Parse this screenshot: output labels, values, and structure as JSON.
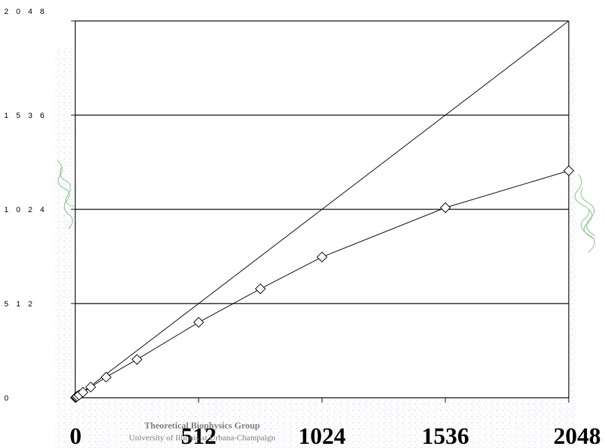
{
  "credits": {
    "line1": "Theoretical Biophysics Group",
    "line2": "University of Illinois at Urbana-Champaign"
  },
  "chart_data": {
    "type": "line",
    "title": "",
    "xlabel": "",
    "ylabel": "",
    "xlim": [
      0,
      2048
    ],
    "ylim": [
      0,
      2048
    ],
    "x_ticks": [
      0,
      512,
      1024,
      1536,
      2048
    ],
    "y_ticks": [
      0,
      512,
      1024,
      1536,
      2048
    ],
    "x_tick_labels": [
      "0",
      "512",
      "1024",
      "1536",
      "2048"
    ],
    "y_tick_labels": [
      "0",
      "5 1 2",
      "1 0 2 4",
      "1 5 3 6",
      "2 0 4 8"
    ],
    "horizontal_gridlines": true,
    "legend": "none",
    "series": [
      {
        "style": "thin line, no markers",
        "color": "#000000",
        "x": [
          0,
          2048
        ],
        "y": [
          0,
          2048
        ]
      },
      {
        "style": "line with open diamond markers",
        "color": "#000000",
        "x": [
          1,
          2,
          4,
          8,
          16,
          32,
          64,
          128,
          256,
          512,
          768,
          1024,
          1536,
          2048
        ],
        "y": [
          1,
          2,
          4,
          8,
          15,
          30,
          58,
          112,
          208,
          410,
          592,
          765,
          1033,
          1234
        ]
      }
    ]
  }
}
